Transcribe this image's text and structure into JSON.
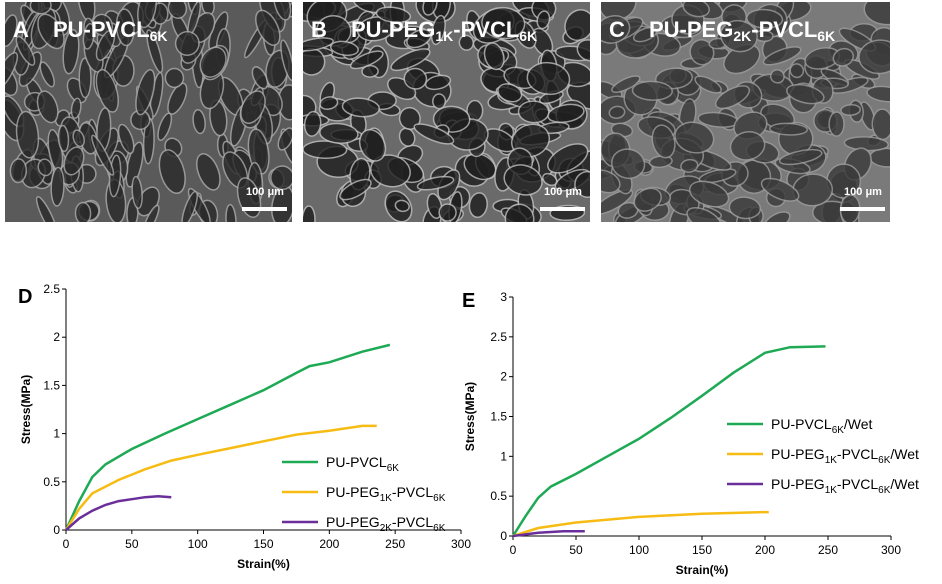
{
  "images": [
    {
      "letter": "A",
      "label": [
        "PU-PVCL",
        "6K"
      ],
      "scale_bar": "100 μm"
    },
    {
      "letter": "B",
      "label": [
        "PU-PEG",
        "1K",
        "-PVCL",
        "6K"
      ],
      "scale_bar": "100 μm"
    },
    {
      "letter": "C",
      "label": [
        "PU-PEG",
        "2K",
        "-PVCL",
        "6K"
      ],
      "scale_bar": "100 μm"
    }
  ],
  "chart_data": [
    {
      "type": "line",
      "panel": "D",
      "xlabel": "Strain(%)",
      "ylabel": "Stress(MPa)",
      "xlim": [
        0,
        300
      ],
      "xticks": [
        0,
        50,
        100,
        150,
        200,
        250,
        300
      ],
      "ylim": [
        0,
        2.5
      ],
      "yticks": [
        0,
        0.5,
        1,
        1.5,
        2,
        2.5
      ],
      "series": [
        {
          "name": [
            "PU-PVCL",
            "6K"
          ],
          "color": "#1eaa55",
          "x": [
            0,
            10,
            20,
            30,
            50,
            75,
            100,
            125,
            150,
            175,
            185,
            200,
            225,
            246
          ],
          "values": [
            0,
            0.3,
            0.55,
            0.68,
            0.84,
            1.0,
            1.15,
            1.3,
            1.45,
            1.63,
            1.7,
            1.74,
            1.85,
            1.92
          ]
        },
        {
          "name": [
            "PU-PEG",
            "1K",
            "-PVCL",
            "6K"
          ],
          "color": "#f7bc13",
          "x": [
            0,
            10,
            20,
            40,
            60,
            80,
            100,
            125,
            150,
            175,
            200,
            225,
            236
          ],
          "values": [
            0,
            0.22,
            0.38,
            0.52,
            0.63,
            0.72,
            0.78,
            0.85,
            0.92,
            0.99,
            1.03,
            1.08,
            1.08
          ]
        },
        {
          "name": [
            "PU-PEG",
            "2K",
            "-PVCL",
            "6K"
          ],
          "color": "#6a2f9a",
          "x": [
            0,
            10,
            20,
            30,
            40,
            50,
            60,
            70,
            80
          ],
          "values": [
            0,
            0.12,
            0.2,
            0.26,
            0.3,
            0.32,
            0.34,
            0.35,
            0.34
          ]
        }
      ]
    },
    {
      "type": "line",
      "panel": "E",
      "xlabel": "Strain(%)",
      "ylabel": "Stress(MPa)",
      "xlim": [
        0,
        300
      ],
      "xticks": [
        0,
        50,
        100,
        150,
        200,
        250,
        300
      ],
      "ylim": [
        0,
        3
      ],
      "yticks": [
        0,
        0.5,
        1,
        1.5,
        2,
        2.5,
        3
      ],
      "series": [
        {
          "name": [
            "PU-PVCL",
            "6K",
            "/Wet"
          ],
          "color": "#1eaa55",
          "x": [
            0,
            10,
            20,
            30,
            50,
            75,
            100,
            125,
            150,
            175,
            200,
            220,
            248
          ],
          "values": [
            0,
            0.25,
            0.48,
            0.62,
            0.78,
            1.0,
            1.22,
            1.48,
            1.76,
            2.05,
            2.3,
            2.37,
            2.38
          ]
        },
        {
          "name": [
            "PU-PEG",
            "1K",
            "-PVCL",
            "6K",
            "/Wet"
          ],
          "color": "#f7bc13",
          "x": [
            0,
            20,
            50,
            100,
            150,
            200,
            203
          ],
          "values": [
            0,
            0.1,
            0.17,
            0.24,
            0.28,
            0.3,
            0.3
          ]
        },
        {
          "name": [
            "PU-PEG",
            "1K",
            "-PVCL",
            "6K",
            "/Wet"
          ],
          "color": "#6a2f9a",
          "x": [
            0,
            10,
            20,
            40,
            57
          ],
          "values": [
            0,
            0.02,
            0.04,
            0.06,
            0.06
          ]
        }
      ]
    }
  ]
}
